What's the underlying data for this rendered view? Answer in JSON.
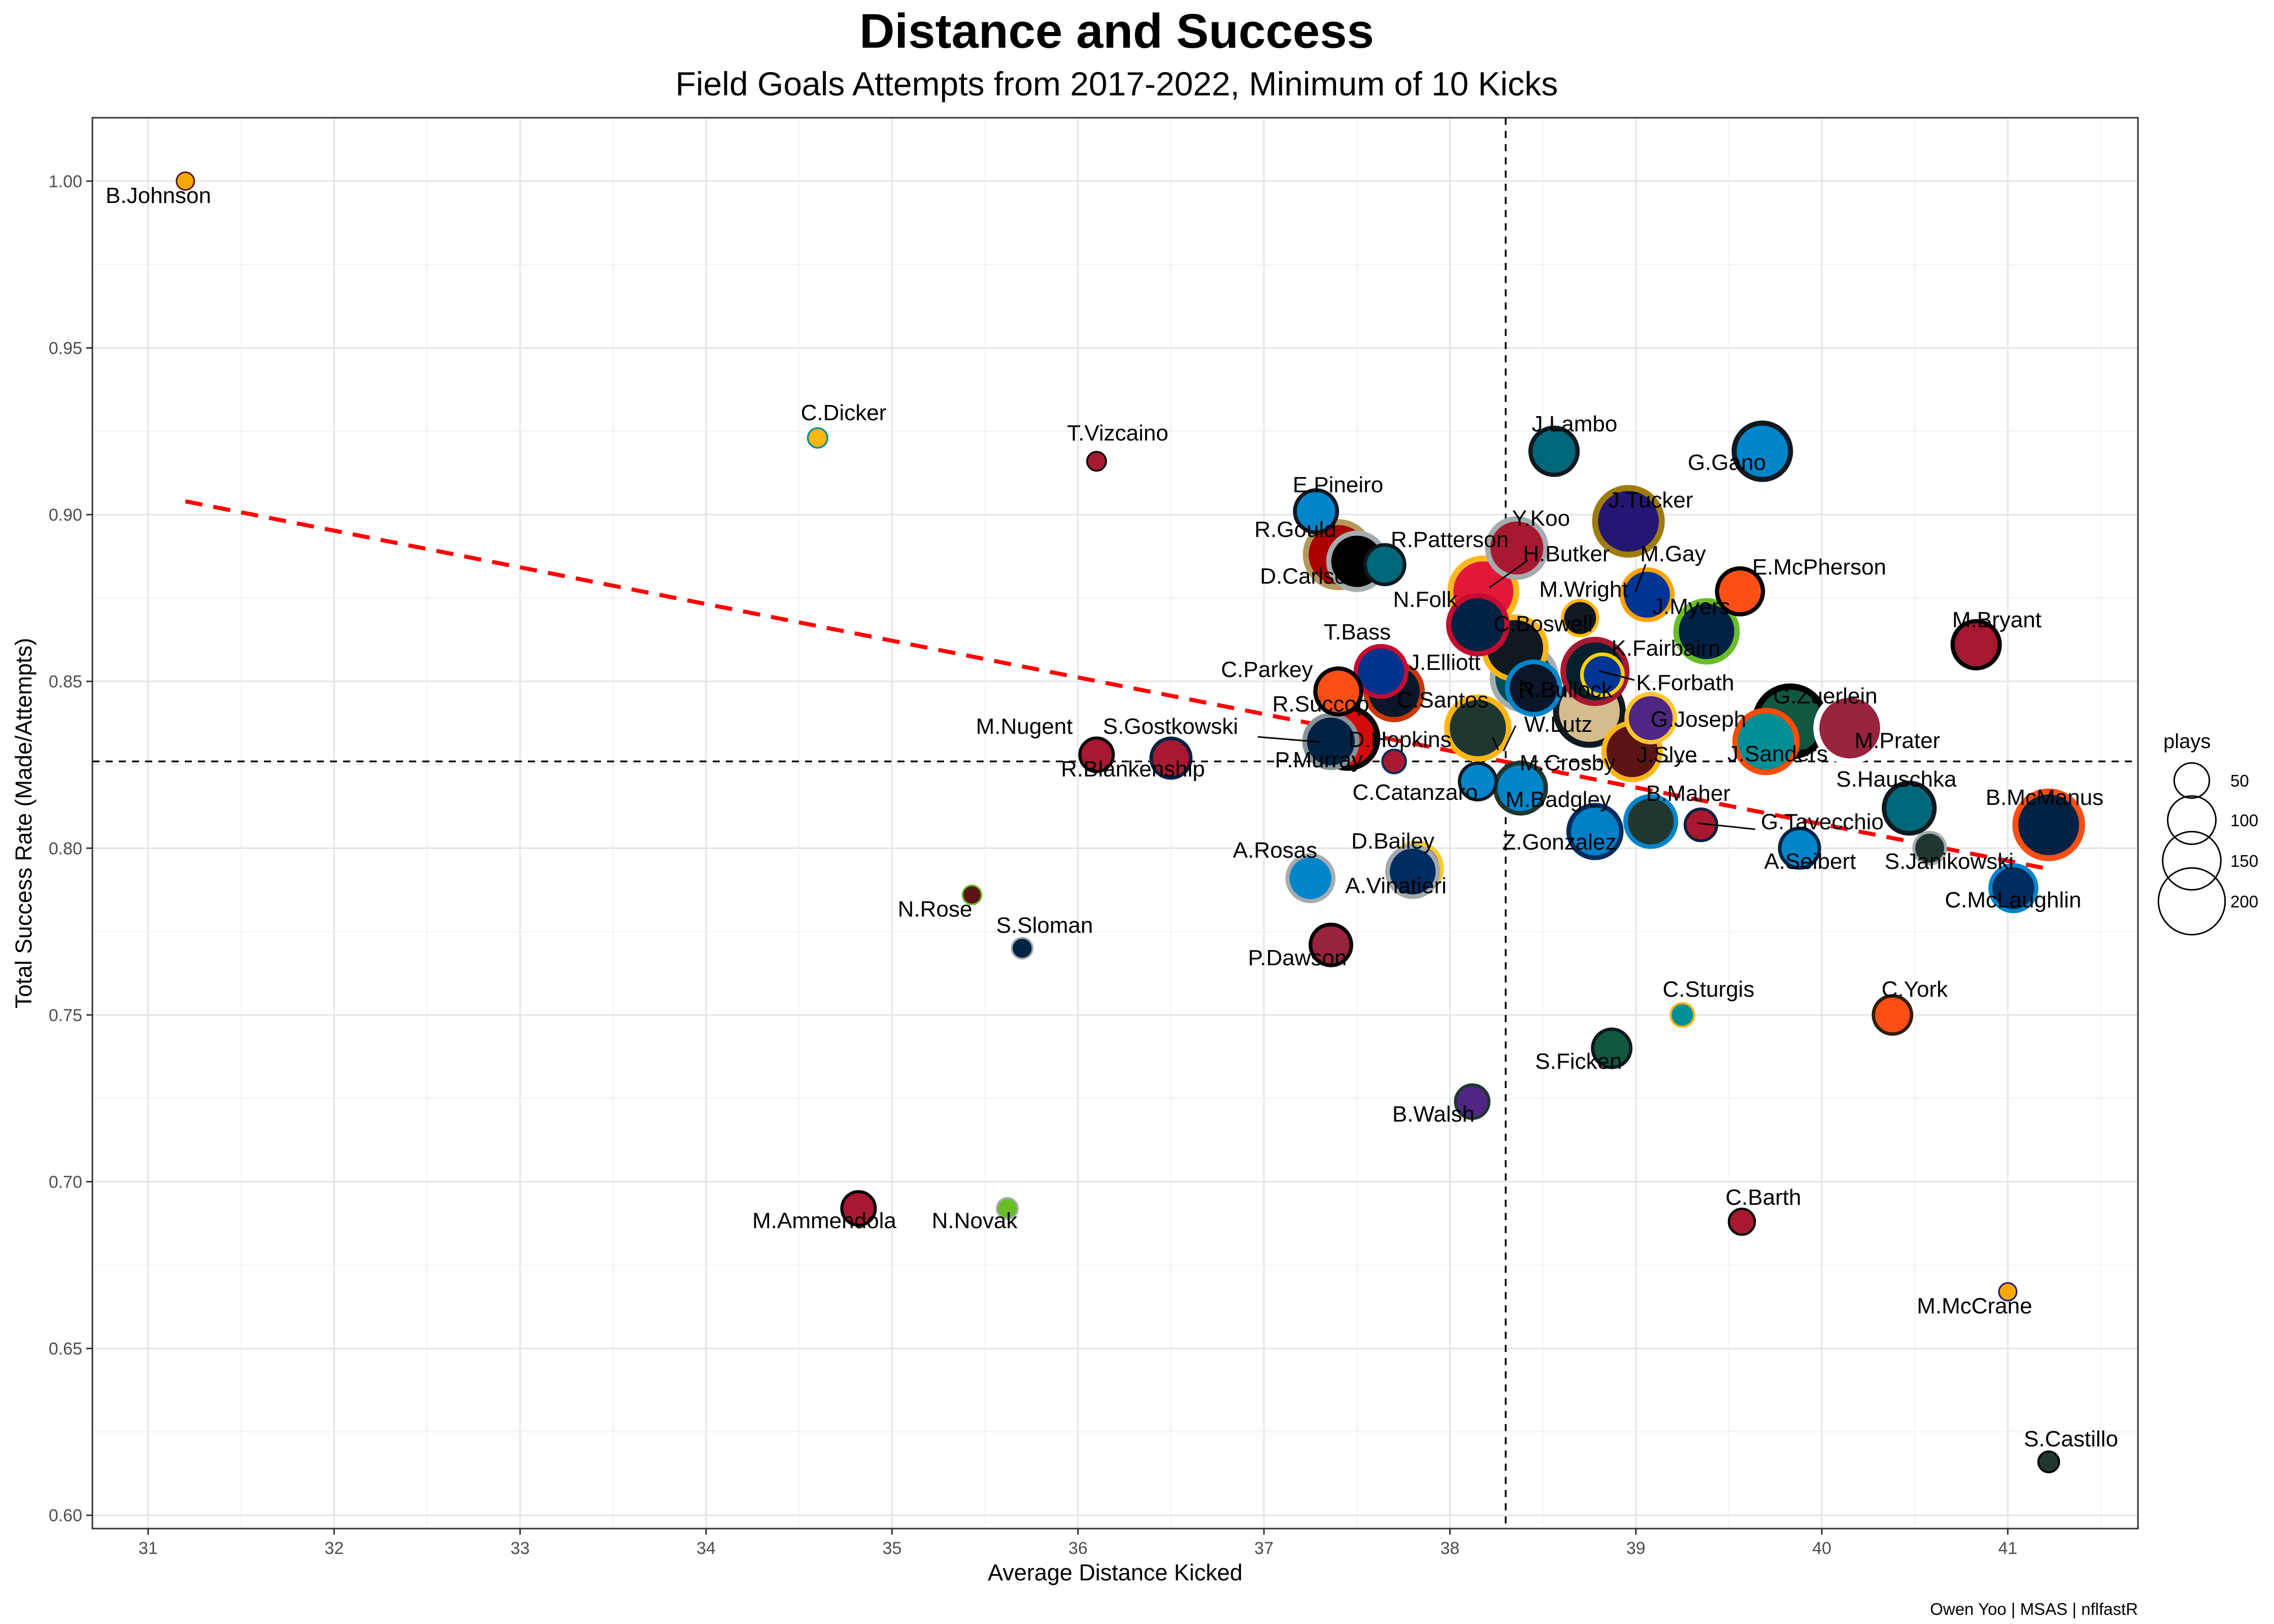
{
  "chart_data": {
    "type": "scatter",
    "title": "Distance and Success",
    "subtitle": "Field Goals Attempts from 2017-2022, Minimum of 10 Kicks",
    "xlabel": "Average Distance Kicked",
    "ylabel": "Total Success Rate (Made/Attempts)",
    "caption": "Owen Yoo | MSAS | nflfastR",
    "xlim": [
      30.7,
      41.7
    ],
    "ylim": [
      0.596,
      1.019
    ],
    "x_ticks": [
      31,
      32,
      33,
      34,
      35,
      36,
      37,
      38,
      39,
      40,
      41
    ],
    "y_ticks": [
      0.6,
      0.65,
      0.7,
      0.75,
      0.8,
      0.85,
      0.9,
      0.95,
      1.0
    ],
    "y_tick_labels": [
      "0.60",
      "0.65",
      "0.70",
      "0.75",
      "0.80",
      "0.85",
      "0.90",
      "0.95",
      "1.00"
    ],
    "grid": true,
    "vline_x": 38.3,
    "hline_y": 0.826,
    "trend_line": {
      "x": [
        31.2,
        41.2
      ],
      "y": [
        0.904,
        0.794
      ],
      "color": "#ff0000",
      "style": "dashed"
    },
    "size_legend": {
      "title": "plays",
      "position": "right",
      "values": [
        50,
        100,
        150,
        200
      ],
      "labels": [
        "50",
        "100",
        "150",
        "200"
      ]
    },
    "points": [
      {
        "name": "B.Johnson",
        "x": 31.2,
        "y": 1.0,
        "plays": 10,
        "fill": "#f7a800",
        "stroke": "#5a1414"
      },
      {
        "name": "C.Dicker",
        "x": 34.6,
        "y": 0.923,
        "plays": 13,
        "fill": "#ffb612",
        "stroke": "#008e97"
      },
      {
        "name": "T.Vizcaino",
        "x": 36.1,
        "y": 0.916,
        "plays": 12,
        "fill": "#a71930",
        "stroke": "#000000"
      },
      {
        "name": "J.Lambo",
        "x": 38.56,
        "y": 0.919,
        "plays": 95,
        "fill": "#006778",
        "stroke": "#101820"
      },
      {
        "name": "G.Gano",
        "x": 39.68,
        "y": 0.919,
        "plays": 140,
        "fill": "#0085ca",
        "stroke": "#101820"
      },
      {
        "name": "E.Pineiro",
        "x": 37.28,
        "y": 0.901,
        "plays": 75,
        "fill": "#0085ca",
        "stroke": "#101820"
      },
      {
        "name": "J.Tucker",
        "x": 38.96,
        "y": 0.898,
        "plays": 200,
        "fill": "#241773",
        "stroke": "#9e7c0c"
      },
      {
        "name": "Y.Koo",
        "x": 38.36,
        "y": 0.89,
        "plays": 150,
        "fill": "#a71930",
        "stroke": "#a5acaf"
      },
      {
        "name": "R.Gould",
        "x": 37.4,
        "y": 0.888,
        "plays": 190,
        "fill": "#aa0000",
        "stroke": "#b3995d"
      },
      {
        "name": "D.Carlson",
        "x": 37.5,
        "y": 0.886,
        "plays": 140,
        "fill": "#000000",
        "stroke": "#a5acaf"
      },
      {
        "name": "R.Patterson",
        "x": 37.65,
        "y": 0.885,
        "plays": 65,
        "fill": "#006778",
        "stroke": "#101820"
      },
      {
        "name": "H.Butker",
        "x": 38.18,
        "y": 0.877,
        "plays": 195,
        "fill": "#e31837",
        "stroke": "#ffb81c"
      },
      {
        "name": "M.Gay",
        "x": 39.06,
        "y": 0.876,
        "plays": 110,
        "fill": "#003594",
        "stroke": "#ffa300"
      },
      {
        "name": "E.McPherson",
        "x": 39.56,
        "y": 0.877,
        "plays": 90,
        "fill": "#fb4f14",
        "stroke": "#000000"
      },
      {
        "name": "M.Wright",
        "x": 38.7,
        "y": 0.869,
        "plays": 50,
        "fill": "#101820",
        "stroke": "#ffb612"
      },
      {
        "name": "N.Folk",
        "x": 38.15,
        "y": 0.867,
        "plays": 150,
        "fill": "#002244",
        "stroke": "#c60c30"
      },
      {
        "name": "C.Boswell",
        "x": 38.35,
        "y": 0.86,
        "plays": 170,
        "fill": "#101820",
        "stroke": "#ffb612"
      },
      {
        "name": "J.Myers",
        "x": 39.38,
        "y": 0.865,
        "plays": 165,
        "fill": "#002244",
        "stroke": "#69be28"
      },
      {
        "name": "M.Bryant",
        "x": 40.83,
        "y": 0.861,
        "plays": 95,
        "fill": "#a71930",
        "stroke": "#000000"
      },
      {
        "name": "K.Fairbairn",
        "x": 38.78,
        "y": 0.853,
        "plays": 180,
        "fill": "#03202f",
        "stroke": "#a71930"
      },
      {
        "name": "K.Forbath",
        "x": 38.82,
        "y": 0.852,
        "plays": 70,
        "fill": "#003594",
        "stroke": "#ffd100"
      },
      {
        "name": "T.Bass",
        "x": 37.63,
        "y": 0.853,
        "plays": 110,
        "fill": "#00338d",
        "stroke": "#c60c30"
      },
      {
        "name": "J.Elliott",
        "x": 38.4,
        "y": 0.851,
        "plays": 180,
        "fill": "#004c54",
        "stroke": "#a5acaf"
      },
      {
        "name": "R.Bullock",
        "x": 38.45,
        "y": 0.848,
        "plays": 120,
        "fill": "#0b162a",
        "stroke": "#0085ca"
      },
      {
        "name": "C.Parkey",
        "x": 37.4,
        "y": 0.847,
        "plays": 90,
        "fill": "#fb4f14",
        "stroke": "#000000"
      },
      {
        "name": "C.Santos",
        "x": 37.7,
        "y": 0.847,
        "plays": 140,
        "fill": "#0b162a",
        "stroke": "#c83803"
      },
      {
        "name": "W.Lutz",
        "x": 38.75,
        "y": 0.841,
        "plays": 200,
        "fill": "#d3bc8d",
        "stroke": "#101820"
      },
      {
        "name": "G.Joseph",
        "x": 39.08,
        "y": 0.839,
        "plays": 100,
        "fill": "#4f2683",
        "stroke": "#ffc62f"
      },
      {
        "name": "G.Zuerlein",
        "x": 39.83,
        "y": 0.838,
        "plays": 220,
        "fill": "#125740",
        "stroke": "#000000"
      },
      {
        "name": "M.Prater",
        "x": 40.15,
        "y": 0.836,
        "plays": 200,
        "fill": "#97233f",
        "stroke": "#ffffff"
      },
      {
        "name": "D.Hopkins",
        "x": 38.15,
        "y": 0.836,
        "plays": 170,
        "fill": "#203731",
        "stroke": "#ffb612"
      },
      {
        "name": "J.Sanders",
        "x": 39.7,
        "y": 0.832,
        "plays": 170,
        "fill": "#008e97",
        "stroke": "#fc4c02"
      },
      {
        "name": "R.Succop",
        "x": 37.45,
        "y": 0.833,
        "plays": 160,
        "fill": "#d50a0a",
        "stroke": "#0a0a08"
      },
      {
        "name": "P.Murray",
        "x": 37.36,
        "y": 0.832,
        "plays": 120,
        "fill": "#002244",
        "stroke": "#869397"
      },
      {
        "name": "J.Slye",
        "x": 38.98,
        "y": 0.829,
        "plays": 140,
        "fill": "#5a1414",
        "stroke": "#ffb612"
      },
      {
        "name": "M.Nugent",
        "x": 36.1,
        "y": 0.828,
        "plays": 45,
        "fill": "#a71930",
        "stroke": "#000000"
      },
      {
        "name": "S.Gostkowski",
        "x": 36.5,
        "y": 0.827,
        "plays": 65,
        "fill": "#a71930",
        "stroke": "#002244"
      },
      {
        "name": "R.Blankenship",
        "x": 37.7,
        "y": 0.826,
        "plays": 20,
        "fill": "#a71930",
        "stroke": "#002c5f"
      },
      {
        "name": "C.Catanzaro",
        "x": 38.15,
        "y": 0.82,
        "plays": 55,
        "fill": "#0085ca",
        "stroke": "#101820"
      },
      {
        "name": "M.Crosby",
        "x": 38.38,
        "y": 0.818,
        "plays": 110,
        "fill": "#0085ca",
        "stroke": "#203731"
      },
      {
        "name": "M.Badgley",
        "x": 38.78,
        "y": 0.805,
        "plays": 120,
        "fill": "#0080c6",
        "stroke": "#002c5f"
      },
      {
        "name": "B.Maher",
        "x": 39.08,
        "y": 0.808,
        "plays": 110,
        "fill": "#203731",
        "stroke": "#0085ca"
      },
      {
        "name": "G.Tavecchio",
        "x": 39.35,
        "y": 0.807,
        "plays": 40,
        "fill": "#a71930",
        "stroke": "#002244"
      },
      {
        "name": "S.Hauschka",
        "x": 40.47,
        "y": 0.812,
        "plays": 110,
        "fill": "#006778",
        "stroke": "#101820"
      },
      {
        "name": "B.McManus",
        "x": 41.22,
        "y": 0.807,
        "plays": 200,
        "fill": "#002244",
        "stroke": "#fb4f14"
      },
      {
        "name": "A.Seibert",
        "x": 39.88,
        "y": 0.8,
        "plays": 65,
        "fill": "#0085ca",
        "stroke": "#002244"
      },
      {
        "name": "S.Janikowski",
        "x": 40.58,
        "y": 0.8,
        "plays": 40,
        "fill": "#203731",
        "stroke": "#a5acaf"
      },
      {
        "name": "C.McLaughlin",
        "x": 41.03,
        "y": 0.788,
        "plays": 90,
        "fill": "#002c5f",
        "stroke": "#0085ca"
      },
      {
        "name": "A.Rosas",
        "x": 37.25,
        "y": 0.791,
        "plays": 90,
        "fill": "#0085ca",
        "stroke": "#a5acaf"
      },
      {
        "name": "D.Bailey",
        "x": 37.82,
        "y": 0.794,
        "plays": 110,
        "fill": "#4f2683",
        "stroke": "#ffc62f"
      },
      {
        "name": "A.Vinatieri",
        "x": 37.8,
        "y": 0.793,
        "plays": 110,
        "fill": "#002c5f",
        "stroke": "#a2aaad"
      },
      {
        "name": "Z.Gonzalez",
        "x": 38.3,
        "y": 0.795,
        "plays": 0,
        "fill": "#000000",
        "stroke": "#000000",
        "hidden": true
      },
      {
        "name": "N.Rose",
        "x": 35.43,
        "y": 0.786,
        "plays": 12,
        "fill": "#5a1414",
        "stroke": "#69be28"
      },
      {
        "name": "S.Sloman",
        "x": 35.7,
        "y": 0.77,
        "plays": 15,
        "fill": "#002244",
        "stroke": "#a5acaf"
      },
      {
        "name": "P.Dawson",
        "x": 37.36,
        "y": 0.771,
        "plays": 70,
        "fill": "#97233f",
        "stroke": "#000000"
      },
      {
        "name": "C.Sturgis",
        "x": 39.25,
        "y": 0.75,
        "plays": 20,
        "fill": "#008e97",
        "stroke": "#ffb612"
      },
      {
        "name": "C.York",
        "x": 40.38,
        "y": 0.75,
        "plays": 60,
        "fill": "#fb4f14",
        "stroke": "#311d00"
      },
      {
        "name": "S.Ficken",
        "x": 38.87,
        "y": 0.74,
        "plays": 60,
        "fill": "#125740",
        "stroke": "#101820"
      },
      {
        "name": "B.Walsh",
        "x": 38.12,
        "y": 0.724,
        "plays": 45,
        "fill": "#4f2683",
        "stroke": "#203731"
      },
      {
        "name": "M.Ammendola",
        "x": 34.82,
        "y": 0.692,
        "plays": 45,
        "fill": "#a71930",
        "stroke": "#000000"
      },
      {
        "name": "N.Novak",
        "x": 35.62,
        "y": 0.692,
        "plays": 15,
        "fill": "#69be28",
        "stroke": "#a5acaf"
      },
      {
        "name": "C.Barth",
        "x": 39.57,
        "y": 0.688,
        "plays": 25,
        "fill": "#a71930",
        "stroke": "#000000"
      },
      {
        "name": "M.McCrane",
        "x": 41.0,
        "y": 0.667,
        "plays": 10,
        "fill": "#f7a800",
        "stroke": "#241773"
      },
      {
        "name": "S.Castillo",
        "x": 41.22,
        "y": 0.616,
        "plays": 15,
        "fill": "#203731",
        "stroke": "#000000"
      }
    ]
  }
}
